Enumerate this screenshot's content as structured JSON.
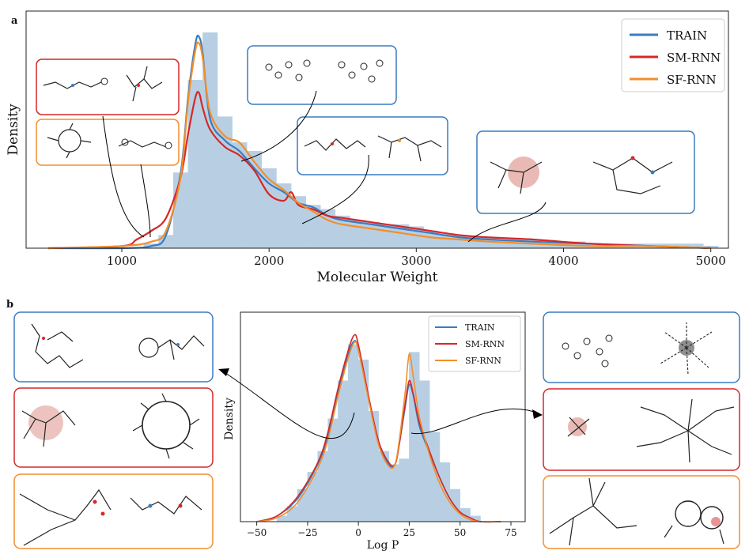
{
  "panel_labels": [
    "a",
    "b"
  ],
  "colors": {
    "train": "#3a7cc0",
    "sm_rnn": "#d62728",
    "sf_rnn": "#f28e2b",
    "hist": "#b8cfe3"
  },
  "chart_data": [
    {
      "type": "line",
      "panel": "a",
      "xlabel": "Molecular Weight",
      "ylabel": "Density",
      "xticks": [
        1000,
        2000,
        3000,
        4000,
        5000
      ],
      "xlim": [
        350,
        5120
      ],
      "ylim": [
        0,
        1.1
      ],
      "grid": false,
      "legend_position": "top-right",
      "legend_entries": [
        "TRAIN",
        "SM-RNN",
        "SF-RNN"
      ],
      "histogram": {
        "bin_edges": [
          1150,
          1250,
          1350,
          1450,
          1550,
          1650,
          1750,
          1850,
          1950,
          2050,
          2150,
          2250,
          2350,
          2450,
          2550,
          2650,
          2750,
          2850,
          2950,
          3050,
          3150,
          3250,
          3350,
          3450,
          3550,
          3650,
          3750,
          3850,
          3950,
          4050,
          4150,
          4250,
          4350,
          4450,
          4550,
          4650,
          4750,
          4850,
          4950,
          5050
        ],
        "heights": [
          0.02,
          0.06,
          0.35,
          0.78,
          1.0,
          0.61,
          0.49,
          0.45,
          0.37,
          0.3,
          0.24,
          0.2,
          0.18,
          0.15,
          0.13,
          0.12,
          0.11,
          0.11,
          0.1,
          0.08,
          0.06,
          0.06,
          0.05,
          0.05,
          0.04,
          0.04,
          0.04,
          0.03,
          0.03,
          0.03,
          0.02,
          0.02,
          0.02,
          0.02,
          0.02,
          0.02,
          0.02,
          0.02,
          0.01
        ]
      },
      "series": [
        {
          "name": "TRAIN",
          "x": [
            500,
            1000,
            1200,
            1300,
            1400,
            1450,
            1500,
            1525,
            1550,
            1600,
            1700,
            1800,
            1900,
            2000,
            2100,
            2200,
            2300,
            2400,
            2500,
            2700,
            2900,
            3100,
            3300,
            3500,
            3800,
            4200,
            4600,
            5000
          ],
          "y": [
            0.0,
            0.0,
            0.01,
            0.06,
            0.35,
            0.7,
            0.95,
            0.98,
            0.9,
            0.6,
            0.5,
            0.45,
            0.37,
            0.3,
            0.26,
            0.21,
            0.19,
            0.15,
            0.13,
            0.11,
            0.09,
            0.07,
            0.05,
            0.04,
            0.03,
            0.02,
            0.01,
            0.0
          ]
        },
        {
          "name": "SM-RNN",
          "x": [
            500,
            1000,
            1100,
            1200,
            1300,
            1400,
            1450,
            1500,
            1525,
            1550,
            1600,
            1700,
            1800,
            1900,
            2000,
            2100,
            2150,
            2200,
            2300,
            2400,
            2500,
            2700,
            2900,
            3100,
            3300,
            3500,
            3800,
            4200,
            4600,
            5000
          ],
          "y": [
            0.0,
            0.01,
            0.04,
            0.08,
            0.14,
            0.33,
            0.53,
            0.7,
            0.72,
            0.65,
            0.55,
            0.47,
            0.43,
            0.36,
            0.25,
            0.22,
            0.26,
            0.2,
            0.18,
            0.15,
            0.14,
            0.12,
            0.1,
            0.08,
            0.06,
            0.05,
            0.04,
            0.02,
            0.01,
            0.0
          ]
        },
        {
          "name": "SF-RNN",
          "x": [
            500,
            1000,
            1200,
            1300,
            1400,
            1450,
            1500,
            1525,
            1550,
            1600,
            1700,
            1800,
            1900,
            2000,
            2100,
            2200,
            2300,
            2400,
            2500,
            2700,
            2900,
            3100,
            3300,
            3500,
            3800,
            4200,
            4600,
            5000
          ],
          "y": [
            0.0,
            0.01,
            0.03,
            0.08,
            0.33,
            0.68,
            0.92,
            0.95,
            0.88,
            0.63,
            0.52,
            0.49,
            0.4,
            0.32,
            0.27,
            0.21,
            0.17,
            0.13,
            0.11,
            0.09,
            0.07,
            0.05,
            0.04,
            0.03,
            0.02,
            0.01,
            0.01,
            0.0
          ]
        }
      ]
    },
    {
      "type": "line",
      "panel": "b",
      "xlabel": "Log P",
      "ylabel": "Density",
      "xticks": [
        -50,
        -25,
        0,
        25,
        50,
        75
      ],
      "xtick_labels": [
        "−50",
        "−25",
        "0",
        "25",
        "50",
        "75"
      ],
      "xlim": [
        -58,
        82
      ],
      "ylim": [
        0,
        1.1
      ],
      "grid": false,
      "legend_position": "top-right",
      "legend_entries": [
        "TRAIN",
        "SM-RNN",
        "SF-RNN"
      ],
      "histogram": {
        "bin_edges": [
          -40,
          -35,
          -30,
          -25,
          -20,
          -15,
          -10,
          -5,
          0,
          5,
          10,
          15,
          20,
          25,
          30,
          35,
          40,
          45,
          50,
          55,
          60
        ],
        "heights": [
          0.03,
          0.08,
          0.17,
          0.26,
          0.37,
          0.54,
          0.74,
          0.93,
          0.85,
          0.58,
          0.37,
          0.3,
          0.33,
          0.89,
          0.74,
          0.47,
          0.31,
          0.17,
          0.07,
          0.03
        ]
      },
      "series": [
        {
          "name": "TRAIN",
          "x": [
            -50,
            -40,
            -30,
            -20,
            -15,
            -10,
            -5,
            -2,
            0,
            5,
            10,
            15,
            18,
            20,
            23,
            25,
            27,
            30,
            35,
            40,
            45,
            50,
            55,
            60,
            70
          ],
          "y": [
            0.0,
            0.03,
            0.12,
            0.3,
            0.45,
            0.68,
            0.88,
            0.95,
            0.9,
            0.65,
            0.42,
            0.3,
            0.3,
            0.4,
            0.6,
            0.72,
            0.66,
            0.5,
            0.36,
            0.23,
            0.12,
            0.05,
            0.02,
            0.0,
            0.0
          ]
        },
        {
          "name": "SM-RNN",
          "x": [
            -50,
            -40,
            -30,
            -20,
            -15,
            -10,
            -5,
            -2,
            0,
            5,
            10,
            15,
            18,
            20,
            23,
            25,
            27,
            30,
            35,
            40,
            45,
            50,
            55,
            60,
            70
          ],
          "y": [
            0.0,
            0.03,
            0.13,
            0.31,
            0.47,
            0.7,
            0.9,
            0.98,
            0.93,
            0.66,
            0.42,
            0.31,
            0.3,
            0.4,
            0.62,
            0.74,
            0.67,
            0.52,
            0.37,
            0.23,
            0.12,
            0.05,
            0.02,
            0.0,
            0.0
          ]
        },
        {
          "name": "SF-RNN",
          "x": [
            -50,
            -40,
            -30,
            -20,
            -15,
            -10,
            -5,
            -2,
            0,
            5,
            10,
            15,
            18,
            20,
            23,
            25,
            27,
            30,
            35,
            40,
            45,
            50,
            55,
            60,
            70
          ],
          "y": [
            0.0,
            0.02,
            0.1,
            0.28,
            0.43,
            0.66,
            0.86,
            0.94,
            0.9,
            0.64,
            0.4,
            0.29,
            0.3,
            0.42,
            0.68,
            0.88,
            0.76,
            0.55,
            0.35,
            0.2,
            0.1,
            0.04,
            0.01,
            0.0,
            0.0
          ]
        }
      ]
    }
  ]
}
